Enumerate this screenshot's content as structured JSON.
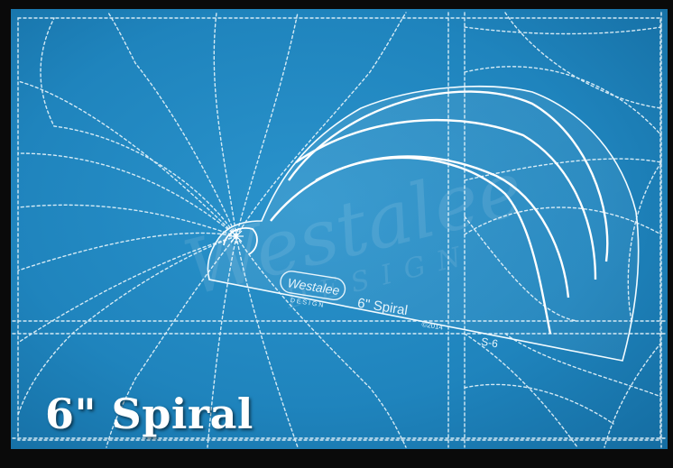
{
  "caption": "6\" Spiral",
  "ruler": {
    "brand": "Westalee",
    "brand_sub": "DESIGN",
    "model": "6\" Spiral",
    "copyright": "©2014",
    "code": "S-6"
  },
  "watermark": {
    "brand": "Westalee",
    "brand_sub": "DESIGN"
  },
  "colors": {
    "fabric": "#1f84bd",
    "fabric_dark": "#14679a",
    "stitch": "#e8f5fb",
    "caption": "#ffffff"
  }
}
